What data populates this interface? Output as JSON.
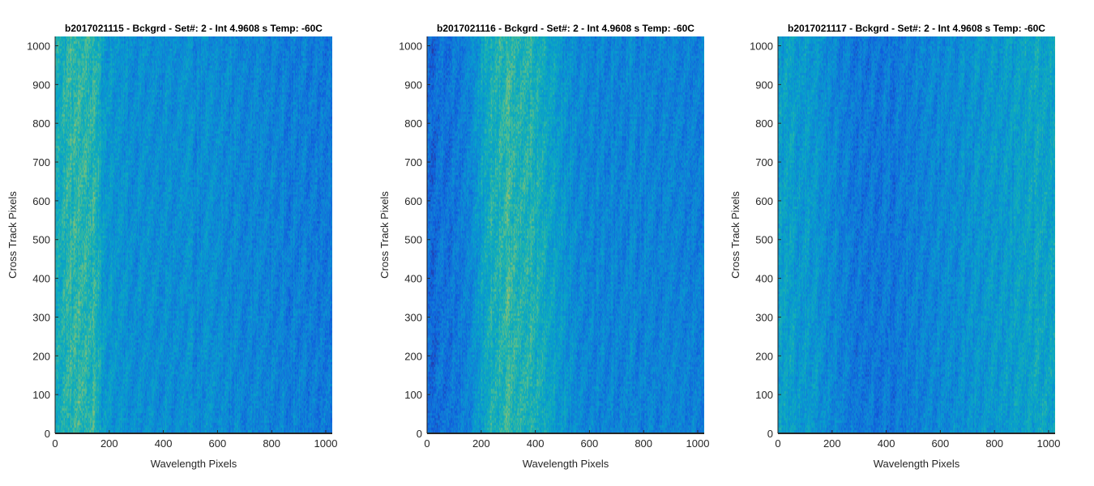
{
  "chart_data": [
    {
      "type": "heatmap",
      "title": "b2017021115 - Bckgrd - Set#: 2 - Int 4.9608 s Temp: -60C",
      "xlabel": "Wavelength Pixels",
      "ylabel": "Cross Track Pixels",
      "xlim": [
        0,
        1024
      ],
      "ylim": [
        0,
        1024
      ],
      "xticks": [
        0,
        200,
        400,
        600,
        800,
        1000
      ],
      "yticks": [
        0,
        100,
        200,
        300,
        400,
        500,
        600,
        700,
        800,
        900,
        1000
      ],
      "colormap": "parula",
      "profile": {
        "x": [
          0,
          50,
          100,
          150,
          180,
          250,
          400,
          600,
          800,
          950,
          1024
        ],
        "intensity": [
          0.55,
          0.62,
          0.64,
          0.6,
          0.46,
          0.4,
          0.38,
          0.37,
          0.33,
          0.3,
          0.3
        ]
      }
    },
    {
      "type": "heatmap",
      "title": "b2017021116 - Bckgrd - Set#: 2 - Int 4.9608 s Temp: -60C",
      "xlabel": "Wavelength Pixels",
      "ylabel": "Cross Track Pixels",
      "xlim": [
        0,
        1024
      ],
      "ylim": [
        0,
        1024
      ],
      "xticks": [
        0,
        200,
        400,
        600,
        800,
        1000
      ],
      "yticks": [
        0,
        100,
        200,
        300,
        400,
        500,
        600,
        700,
        800,
        900,
        1000
      ],
      "colormap": "parula",
      "profile": {
        "x": [
          0,
          60,
          150,
          230,
          300,
          380,
          450,
          540,
          650,
          800,
          1024
        ],
        "intensity": [
          0.22,
          0.25,
          0.33,
          0.55,
          0.64,
          0.6,
          0.52,
          0.38,
          0.34,
          0.34,
          0.32
        ]
      }
    },
    {
      "type": "heatmap",
      "title": "b2017021117 - Bckgrd - Set#: 2 - Int 4.9608 s Temp: -60C",
      "xlabel": "Wavelength Pixels",
      "ylabel": "Cross Track Pixels",
      "xlim": [
        0,
        1024
      ],
      "ylim": [
        0,
        1024
      ],
      "xticks": [
        0,
        200,
        400,
        600,
        800,
        1000
      ],
      "yticks": [
        0,
        100,
        200,
        300,
        400,
        500,
        600,
        700,
        800,
        900,
        1000
      ],
      "colormap": "parula",
      "profile": {
        "x": [
          0,
          100,
          200,
          300,
          400,
          550,
          700,
          850,
          950,
          1024
        ],
        "intensity": [
          0.48,
          0.44,
          0.36,
          0.27,
          0.28,
          0.34,
          0.4,
          0.45,
          0.5,
          0.48
        ]
      }
    }
  ]
}
